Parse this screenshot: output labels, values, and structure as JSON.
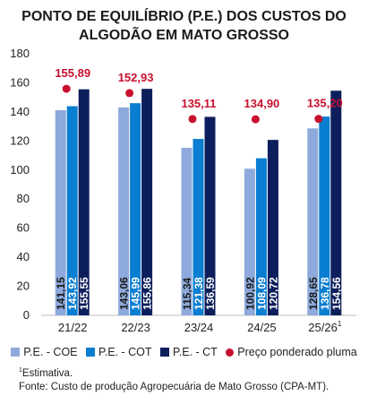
{
  "chart_data": {
    "type": "bar",
    "title": [
      "PONTO DE EQUILÍBRIO (P.E.) DOS CUSTOS DO",
      "ALGODÃO EM MATO GROSSO"
    ],
    "categories": [
      "21/22",
      "22/23",
      "23/24",
      "24/25",
      "25/26"
    ],
    "category_superscripts": [
      "",
      "",
      "",
      "",
      "1"
    ],
    "ylim": [
      0,
      180
    ],
    "yticks": [
      0,
      20,
      40,
      60,
      80,
      100,
      120,
      140,
      160,
      180
    ],
    "grid": false,
    "legend_position": "bottom",
    "series": [
      {
        "name": "P.E. - COE",
        "type": "bar",
        "color": "#8eaadc",
        "values": [
          141.15,
          143.06,
          115.34,
          100.92,
          128.65
        ],
        "labels": [
          "141,15",
          "143,06",
          "115,34",
          "100,92",
          "128,65"
        ]
      },
      {
        "name": "P.E. - COT",
        "type": "bar",
        "color": "#0a7ed1",
        "values": [
          143.92,
          145.99,
          121.38,
          108.09,
          136.78
        ],
        "labels": [
          "143,92",
          "145,99",
          "121,38",
          "108,09",
          "136,78"
        ]
      },
      {
        "name": "P.E. - CT",
        "type": "bar",
        "color": "#0c1e5b",
        "values": [
          155.55,
          155.86,
          136.59,
          120.72,
          154.56
        ],
        "labels": [
          "155,55",
          "155,86",
          "136,59",
          "120,72",
          "154,56"
        ]
      },
      {
        "name": "Preço ponderado pluma",
        "type": "point",
        "color": "#c8102e",
        "values": [
          155.89,
          152.93,
          135.11,
          134.9,
          135.2
        ],
        "labels": [
          "155,89",
          "152,93",
          "135,11",
          "134,90",
          "135,20"
        ]
      }
    ]
  },
  "footnote": {
    "sup": "1",
    "line1": "Estimativa.",
    "line2": "Fonte: Custo de produção Agropecuária de Mato Grosso (CPA-MT)."
  }
}
